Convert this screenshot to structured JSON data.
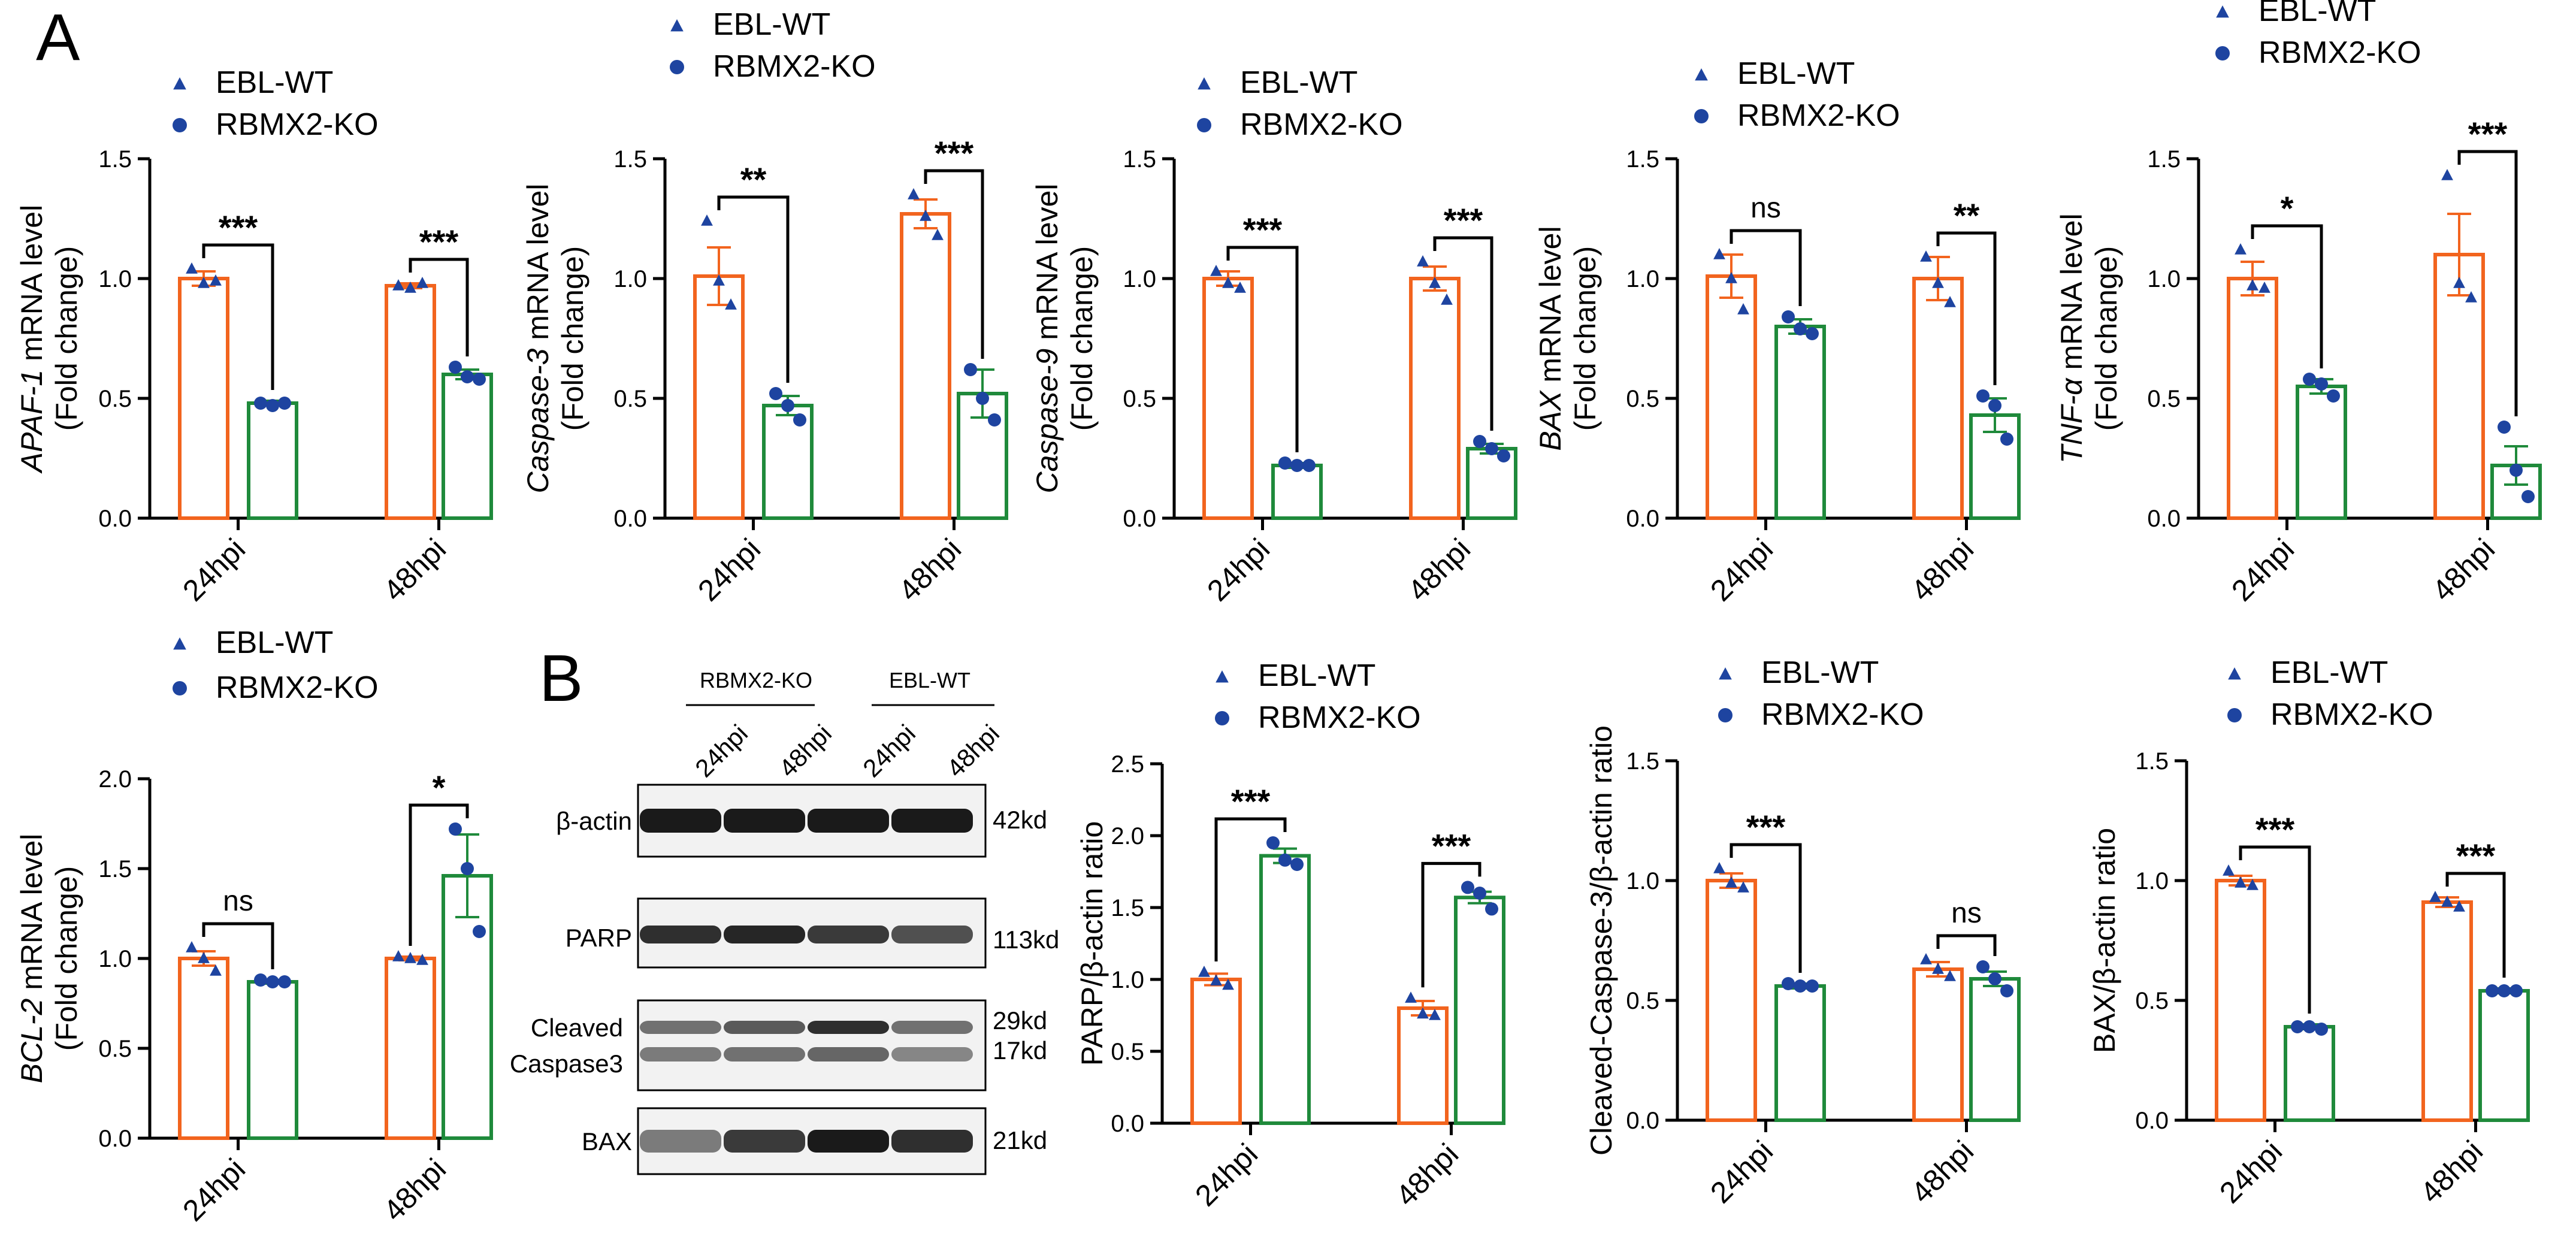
{
  "panel_letters": [
    "A",
    "B"
  ],
  "legend": {
    "wt": "EBL-WT",
    "ko": "RBMX2-KO"
  },
  "colors": {
    "wt": "#F2641E",
    "ko": "#1F8A3B",
    "marker": "#1E44A0",
    "axis": "#000000"
  },
  "blot": {
    "groups": [
      "RBMX2-KO",
      "EBL-WT"
    ],
    "lanes": [
      "24hpi",
      "48hpi",
      "24hpi",
      "48hpi"
    ],
    "rows": [
      {
        "label": "β-actin",
        "sizes": [
          "42kd"
        ]
      },
      {
        "label": "PARP",
        "sizes": [
          "113kd"
        ]
      },
      {
        "label": "Cleaved Caspase3",
        "label_lines": [
          "Cleaved",
          "Caspase3"
        ],
        "sizes": [
          "29kd",
          "17kd"
        ]
      },
      {
        "label": "BAX",
        "sizes": [
          "21kd"
        ]
      }
    ]
  },
  "chart_data": [
    {
      "type": "bar",
      "id": "apaf1",
      "title": "",
      "ylabel_italic": "APAF-1",
      "ylabel_rest": " mRNA level",
      "ylabel_line2": "(Fold change)",
      "categories": [
        "24hpi",
        "48hpi"
      ],
      "ylim": [
        0,
        1.5
      ],
      "yticks": [
        "0.0",
        "0.5",
        "1.0",
        "1.5"
      ],
      "series": [
        {
          "name": "EBL-WT",
          "values": [
            1.0,
            0.97
          ],
          "errors": [
            0.03,
            0.01
          ],
          "points": [
            [
              1.04,
              0.98,
              0.99
            ],
            [
              0.97,
              0.96,
              0.98
            ]
          ]
        },
        {
          "name": "RBMX2-KO",
          "values": [
            0.48,
            0.6
          ],
          "errors": [
            0.01,
            0.02
          ],
          "points": [
            [
              0.48,
              0.47,
              0.48
            ],
            [
              0.63,
              0.59,
              0.58
            ]
          ]
        }
      ],
      "significance": [
        "***",
        "***"
      ]
    },
    {
      "type": "bar",
      "id": "casp3",
      "title": "",
      "ylabel_italic": "Caspase-3",
      "ylabel_rest": " mRNA level",
      "ylabel_line2": "(Fold change)",
      "categories": [
        "24hpi",
        "48hpi"
      ],
      "ylim": [
        0,
        1.5
      ],
      "yticks": [
        "0.0",
        "0.5",
        "1.0",
        "1.5"
      ],
      "series": [
        {
          "name": "EBL-WT",
          "values": [
            1.01,
            1.27
          ],
          "errors": [
            0.12,
            0.06
          ],
          "points": [
            [
              1.24,
              0.99,
              0.89
            ],
            [
              1.35,
              1.26,
              1.18
            ]
          ]
        },
        {
          "name": "RBMX2-KO",
          "values": [
            0.47,
            0.52
          ],
          "errors": [
            0.04,
            0.1
          ],
          "points": [
            [
              0.52,
              0.47,
              0.41
            ],
            [
              0.62,
              0.5,
              0.41
            ]
          ]
        }
      ],
      "significance": [
        "**",
        "***"
      ]
    },
    {
      "type": "bar",
      "id": "casp9",
      "title": "",
      "ylabel_italic": "Caspase-9",
      "ylabel_rest": " mRNA level",
      "ylabel_line2": "(Fold change)",
      "categories": [
        "24hpi",
        "48hpi"
      ],
      "ylim": [
        0,
        1.5
      ],
      "yticks": [
        "0.0",
        "0.5",
        "1.0",
        "1.5"
      ],
      "series": [
        {
          "name": "EBL-WT",
          "values": [
            1.0,
            1.0
          ],
          "errors": [
            0.03,
            0.05
          ],
          "points": [
            [
              1.03,
              0.98,
              0.96
            ],
            [
              1.07,
              0.98,
              0.91
            ]
          ]
        },
        {
          "name": "RBMX2-KO",
          "values": [
            0.22,
            0.29
          ],
          "errors": [
            0.01,
            0.02
          ],
          "points": [
            [
              0.23,
              0.22,
              0.22
            ],
            [
              0.32,
              0.29,
              0.26
            ]
          ]
        }
      ],
      "significance": [
        "***",
        "***"
      ]
    },
    {
      "type": "bar",
      "id": "bax_mrna",
      "title": "",
      "ylabel_italic": "BAX",
      "ylabel_rest": " mRNA level",
      "ylabel_line2": "(Fold change)",
      "categories": [
        "24hpi",
        "48hpi"
      ],
      "ylim": [
        0,
        1.5
      ],
      "yticks": [
        "0.0",
        "0.5",
        "1.0",
        "1.5"
      ],
      "series": [
        {
          "name": "EBL-WT",
          "values": [
            1.01,
            1.0
          ],
          "errors": [
            0.09,
            0.09
          ],
          "points": [
            [
              1.1,
              1.0,
              0.87
            ],
            [
              1.09,
              0.98,
              0.9
            ]
          ]
        },
        {
          "name": "RBMX2-KO",
          "values": [
            0.8,
            0.43
          ],
          "errors": [
            0.03,
            0.07
          ],
          "points": [
            [
              0.84,
              0.79,
              0.77
            ],
            [
              0.51,
              0.47,
              0.33
            ]
          ]
        }
      ],
      "significance": [
        "ns",
        "**"
      ]
    },
    {
      "type": "bar",
      "id": "tnfa",
      "title": "",
      "ylabel_italic": "TNF-α",
      "ylabel_rest": " mRNA level",
      "ylabel_line2": "(Fold change)",
      "categories": [
        "24hpi",
        "48hpi"
      ],
      "ylim": [
        0,
        1.5
      ],
      "yticks": [
        "0.0",
        "0.5",
        "1.0",
        "1.5"
      ],
      "series": [
        {
          "name": "EBL-WT",
          "values": [
            1.0,
            1.1
          ],
          "errors": [
            0.07,
            0.17
          ],
          "points": [
            [
              1.12,
              0.97,
              0.96
            ],
            [
              1.43,
              0.98,
              0.92
            ]
          ]
        },
        {
          "name": "RBMX2-KO",
          "values": [
            0.55,
            0.22
          ],
          "errors": [
            0.03,
            0.08
          ],
          "points": [
            [
              0.58,
              0.56,
              0.51
            ],
            [
              0.38,
              0.2,
              0.09
            ]
          ]
        }
      ],
      "significance": [
        "*",
        "***"
      ]
    },
    {
      "type": "bar",
      "id": "bcl2",
      "title": "",
      "ylabel_italic": "BCL-2",
      "ylabel_rest": " mRNA level",
      "ylabel_line2": "(Fold change)",
      "categories": [
        "24hpi",
        "48hpi"
      ],
      "ylim": [
        0,
        2.0
      ],
      "yticks": [
        "0.0",
        "0.5",
        "1.0",
        "1.5",
        "2.0"
      ],
      "series": [
        {
          "name": "EBL-WT",
          "values": [
            1.0,
            1.0
          ],
          "errors": [
            0.04,
            0.01
          ],
          "points": [
            [
              1.06,
              1.0,
              0.93
            ],
            [
              1.01,
              1.0,
              0.99
            ]
          ]
        },
        {
          "name": "RBMX2-KO",
          "values": [
            0.87,
            1.46
          ],
          "errors": [
            0.01,
            0.23
          ],
          "points": [
            [
              0.88,
              0.87,
              0.87
            ],
            [
              1.72,
              1.5,
              1.15
            ]
          ]
        }
      ],
      "significance": [
        "ns",
        "*"
      ]
    },
    {
      "type": "bar",
      "id": "parp_ratio",
      "title": "",
      "ylabel_italic": "",
      "ylabel_rest": "PARP/β-actin ratio",
      "ylabel_line2": "",
      "categories": [
        "24hpi",
        "48hpi"
      ],
      "ylim": [
        0,
        2.5
      ],
      "yticks": [
        "0.0",
        "0.5",
        "1.0",
        "1.5",
        "2.0",
        "2.5"
      ],
      "series": [
        {
          "name": "EBL-WT",
          "values": [
            1.0,
            0.8
          ],
          "errors": [
            0.04,
            0.05
          ],
          "points": [
            [
              1.05,
              0.99,
              0.96
            ],
            [
              0.87,
              0.76,
              0.75
            ]
          ]
        },
        {
          "name": "RBMX2-KO",
          "values": [
            1.86,
            1.57
          ],
          "errors": [
            0.05,
            0.04
          ],
          "points": [
            [
              1.95,
              1.83,
              1.8
            ],
            [
              1.64,
              1.6,
              1.49
            ]
          ]
        }
      ],
      "significance": [
        "***",
        "***"
      ]
    },
    {
      "type": "bar",
      "id": "clcasp3_ratio",
      "title": "",
      "ylabel_italic": "",
      "ylabel_rest": "Cleaved-Caspase-3/β-actin ratio",
      "ylabel_line2": "",
      "categories": [
        "24hpi",
        "48hpi"
      ],
      "ylim": [
        0,
        1.5
      ],
      "yticks": [
        "0.0",
        "0.5",
        "1.0",
        "1.5"
      ],
      "series": [
        {
          "name": "EBL-WT",
          "values": [
            1.0,
            0.63
          ],
          "errors": [
            0.03,
            0.03
          ],
          "points": [
            [
              1.05,
              0.99,
              0.97
            ],
            [
              0.67,
              0.63,
              0.6
            ]
          ]
        },
        {
          "name": "RBMX2-KO",
          "values": [
            0.56,
            0.59
          ],
          "errors": [
            0.01,
            0.03
          ],
          "points": [
            [
              0.57,
              0.56,
              0.56
            ],
            [
              0.64,
              0.59,
              0.54
            ]
          ]
        }
      ],
      "significance": [
        "***",
        "ns"
      ]
    },
    {
      "type": "bar",
      "id": "bax_ratio",
      "title": "",
      "ylabel_italic": "",
      "ylabel_rest": "BAX/β-actin ratio",
      "ylabel_line2": "",
      "categories": [
        "24hpi",
        "48hpi"
      ],
      "ylim": [
        0,
        1.5
      ],
      "yticks": [
        "0.0",
        "0.5",
        "1.0",
        "1.5"
      ],
      "series": [
        {
          "name": "EBL-WT",
          "values": [
            1.0,
            0.91
          ],
          "errors": [
            0.02,
            0.02
          ],
          "points": [
            [
              1.04,
              0.99,
              0.98
            ],
            [
              0.93,
              0.91,
              0.89
            ]
          ]
        },
        {
          "name": "RBMX2-KO",
          "values": [
            0.39,
            0.54
          ],
          "errors": [
            0.01,
            0.01
          ],
          "points": [
            [
              0.39,
              0.39,
              0.38
            ],
            [
              0.54,
              0.54,
              0.54
            ]
          ]
        }
      ],
      "significance": [
        "***",
        "***"
      ]
    }
  ]
}
